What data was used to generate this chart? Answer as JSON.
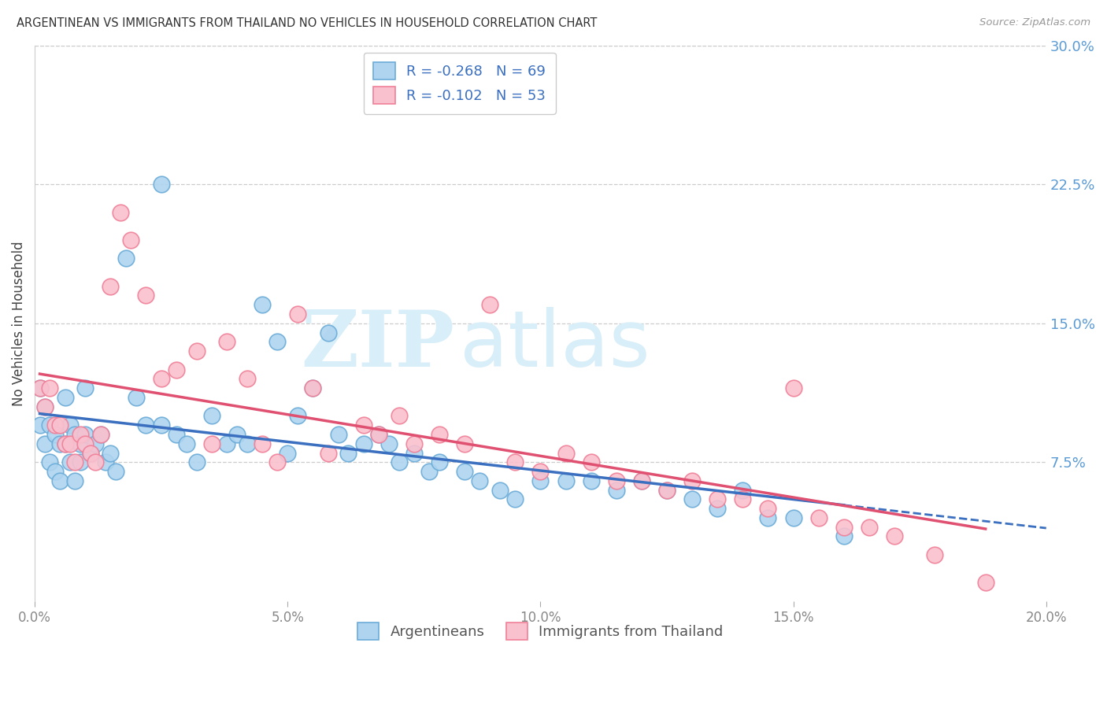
{
  "title": "ARGENTINEAN VS IMMIGRANTS FROM THAILAND NO VEHICLES IN HOUSEHOLD CORRELATION CHART",
  "source": "Source: ZipAtlas.com",
  "ylabel": "No Vehicles in Household",
  "x_label_blue": "Argentineans",
  "x_label_pink": "Immigrants from Thailand",
  "legend_blue_R": "R = -0.268",
  "legend_blue_N": "N = 69",
  "legend_pink_R": "R = -0.102",
  "legend_pink_N": "N = 53",
  "xlim": [
    0.0,
    0.2
  ],
  "ylim": [
    0.0,
    0.3
  ],
  "xticks": [
    0.0,
    0.05,
    0.1,
    0.15,
    0.2
  ],
  "yticks_right": [
    0.075,
    0.15,
    0.225,
    0.3
  ],
  "ytick_labels_right": [
    "7.5%",
    "15.0%",
    "22.5%",
    "30.0%"
  ],
  "xtick_labels": [
    "0.0%",
    "5.0%",
    "10.0%",
    "15.0%",
    "20.0%"
  ],
  "blue_fill": "#AED4F0",
  "pink_fill": "#F9C0CE",
  "blue_edge": "#6BACD8",
  "pink_edge": "#F08098",
  "blue_line_color": "#3B6FBF",
  "pink_line_color": "#E05070",
  "watermark_zip": "ZIP",
  "watermark_atlas": "atlas",
  "watermark_color": "#D8EEF8",
  "blue_dots_x": [
    0.001,
    0.001,
    0.002,
    0.002,
    0.003,
    0.003,
    0.004,
    0.004,
    0.005,
    0.005,
    0.006,
    0.006,
    0.007,
    0.007,
    0.008,
    0.008,
    0.009,
    0.009,
    0.01,
    0.01,
    0.011,
    0.012,
    0.013,
    0.014,
    0.015,
    0.016,
    0.018,
    0.02,
    0.022,
    0.025,
    0.025,
    0.028,
    0.03,
    0.032,
    0.035,
    0.038,
    0.04,
    0.042,
    0.045,
    0.048,
    0.05,
    0.052,
    0.055,
    0.058,
    0.06,
    0.062,
    0.065,
    0.068,
    0.07,
    0.072,
    0.075,
    0.078,
    0.08,
    0.085,
    0.088,
    0.092,
    0.095,
    0.1,
    0.105,
    0.11,
    0.115,
    0.12,
    0.125,
    0.13,
    0.135,
    0.14,
    0.145,
    0.15,
    0.16
  ],
  "blue_dots_y": [
    0.115,
    0.095,
    0.105,
    0.085,
    0.095,
    0.075,
    0.09,
    0.07,
    0.085,
    0.065,
    0.11,
    0.085,
    0.095,
    0.075,
    0.09,
    0.065,
    0.085,
    0.075,
    0.115,
    0.09,
    0.08,
    0.085,
    0.09,
    0.075,
    0.08,
    0.07,
    0.185,
    0.11,
    0.095,
    0.225,
    0.095,
    0.09,
    0.085,
    0.075,
    0.1,
    0.085,
    0.09,
    0.085,
    0.16,
    0.14,
    0.08,
    0.1,
    0.115,
    0.145,
    0.09,
    0.08,
    0.085,
    0.09,
    0.085,
    0.075,
    0.08,
    0.07,
    0.075,
    0.07,
    0.065,
    0.06,
    0.055,
    0.065,
    0.065,
    0.065,
    0.06,
    0.065,
    0.06,
    0.055,
    0.05,
    0.06,
    0.045,
    0.045,
    0.035
  ],
  "pink_dots_x": [
    0.001,
    0.002,
    0.003,
    0.004,
    0.005,
    0.006,
    0.007,
    0.008,
    0.009,
    0.01,
    0.011,
    0.012,
    0.013,
    0.015,
    0.017,
    0.019,
    0.022,
    0.025,
    0.028,
    0.032,
    0.035,
    0.038,
    0.042,
    0.045,
    0.048,
    0.052,
    0.055,
    0.058,
    0.065,
    0.068,
    0.072,
    0.075,
    0.08,
    0.085,
    0.09,
    0.095,
    0.1,
    0.105,
    0.11,
    0.115,
    0.12,
    0.125,
    0.13,
    0.135,
    0.14,
    0.145,
    0.15,
    0.155,
    0.16,
    0.165,
    0.17,
    0.178,
    0.188
  ],
  "pink_dots_y": [
    0.115,
    0.105,
    0.115,
    0.095,
    0.095,
    0.085,
    0.085,
    0.075,
    0.09,
    0.085,
    0.08,
    0.075,
    0.09,
    0.17,
    0.21,
    0.195,
    0.165,
    0.12,
    0.125,
    0.135,
    0.085,
    0.14,
    0.12,
    0.085,
    0.075,
    0.155,
    0.115,
    0.08,
    0.095,
    0.09,
    0.1,
    0.085,
    0.09,
    0.085,
    0.16,
    0.075,
    0.07,
    0.08,
    0.075,
    0.065,
    0.065,
    0.06,
    0.065,
    0.055,
    0.055,
    0.05,
    0.115,
    0.045,
    0.04,
    0.04,
    0.035,
    0.025,
    0.01
  ]
}
